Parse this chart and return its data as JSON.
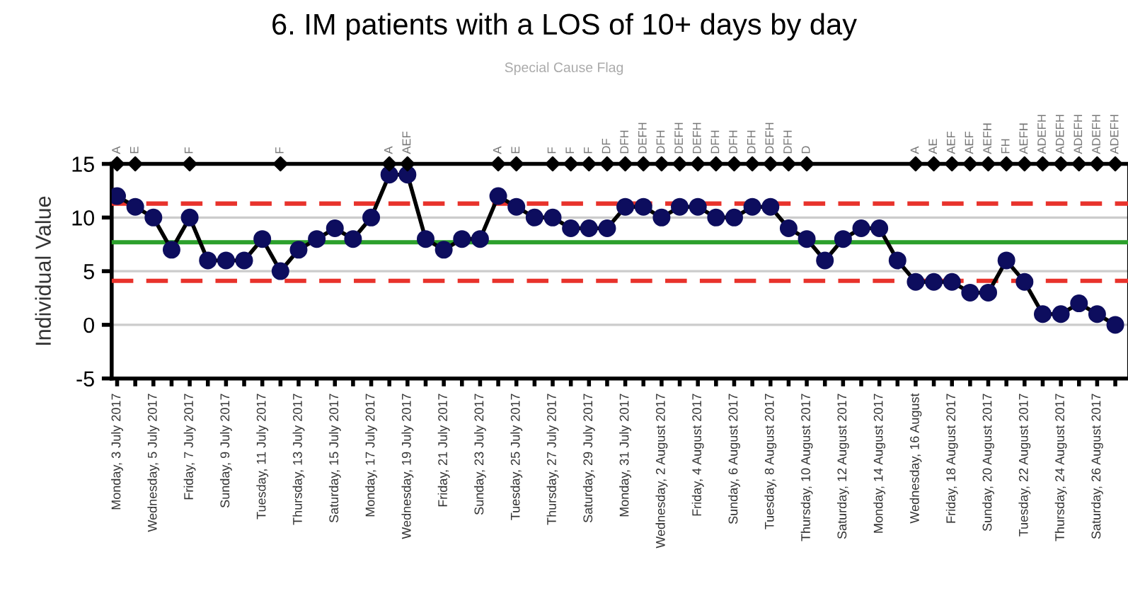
{
  "chart_data": {
    "type": "line",
    "title": "6. IM patients with a LOS of 10+ days by day",
    "subtitle": "Special Cause Flag",
    "ylabel": "Individual Value",
    "categories": [
      "Monday, 3 July 2017",
      null,
      "Wednesday, 5 July 2017",
      null,
      "Friday, 7 July 2017",
      null,
      "Sunday, 9 July 2017",
      null,
      "Tuesday, 11 July 2017",
      null,
      "Thursday, 13 July 2017",
      null,
      "Saturday, 15 July 2017",
      null,
      "Monday, 17 July 2017",
      null,
      "Wednesday, 19 July 2017",
      null,
      "Friday, 21 July 2017",
      null,
      "Sunday, 23 July 2017",
      null,
      "Tuesday, 25 July 2017",
      null,
      "Thursday, 27 July 2017",
      null,
      "Saturday, 29 July 2017",
      null,
      "Monday, 31 July 2017",
      null,
      "Wednesday, 2 August 2017",
      null,
      "Friday, 4 August 2017",
      null,
      "Sunday, 6 August 2017",
      null,
      "Tuesday, 8 August 2017",
      null,
      "Thursday, 10 August 2017",
      null,
      "Saturday, 12 August 2017",
      null,
      "Monday, 14 August 2017",
      null,
      "Wednesday, 16 August",
      null,
      "Friday, 18 August 2017",
      null,
      "Sunday, 20 August 2017",
      null,
      "Tuesday, 22 August 2017",
      null,
      "Thursday, 24 August 2017",
      null,
      "Saturday, 26 August 2017",
      null
    ],
    "series": [
      {
        "color": "#0d0d5e",
        "marker": "circle",
        "values": [
          12,
          11,
          10,
          7,
          10,
          6,
          6,
          6,
          8,
          5,
          7,
          8,
          9,
          8,
          10,
          14,
          14,
          8,
          7,
          8,
          8,
          12,
          11,
          10,
          10,
          9,
          9,
          9,
          11,
          11,
          10,
          11,
          11,
          10,
          10,
          11,
          11,
          9,
          8,
          6,
          8,
          9,
          9,
          6,
          4,
          4,
          4,
          3,
          3,
          6,
          4,
          1,
          1,
          2,
          1,
          0
        ]
      },
      {
        "type": "scatter",
        "color": "#000000",
        "marker": "diamond",
        "values": [
          15,
          15,
          null,
          null,
          15,
          null,
          null,
          null,
          null,
          15,
          null,
          null,
          null,
          null,
          null,
          15,
          15,
          null,
          null,
          null,
          null,
          15,
          15,
          null,
          15,
          15,
          15,
          15,
          15,
          15,
          15,
          15,
          15,
          15,
          15,
          15,
          15,
          15,
          15,
          null,
          null,
          null,
          null,
          null,
          15,
          15,
          15,
          15,
          15,
          15,
          15,
          15,
          15,
          15,
          15,
          15
        ],
        "value_labels": [
          "A",
          "E",
          null,
          null,
          "F",
          null,
          null,
          null,
          null,
          "F",
          null,
          null,
          null,
          null,
          null,
          "A",
          "AEF",
          null,
          null,
          null,
          null,
          "A",
          "E",
          null,
          "F",
          "F",
          "F",
          "DF",
          "DFH",
          "DEFH",
          "DFH",
          "DEFH",
          "DEFH",
          "DFH",
          "DFH",
          "DFH",
          "DEFH",
          "DFH",
          "D",
          null,
          null,
          null,
          null,
          null,
          "A",
          "AE",
          "AEF",
          "AEF",
          "AEFH",
          "FH",
          "AEFH",
          "ADEFH",
          "ADEFH",
          "ADEFH",
          "ADEFH",
          "ADEFH"
        ]
      }
    ],
    "ylim": [
      -5,
      15
    ],
    "yticks": [
      -5,
      0,
      5,
      10,
      15
    ],
    "grid": "y",
    "ref_lines": [
      {
        "axis": "y",
        "value": 7.7,
        "color": "#2ca02c",
        "line_style": "solid"
      },
      {
        "axis": "y",
        "value": 11.3,
        "color": "#e8322b",
        "line_style": "dashed"
      },
      {
        "axis": "y",
        "value": 4.1,
        "color": "#e8322b",
        "line_style": "dashed"
      }
    ]
  }
}
